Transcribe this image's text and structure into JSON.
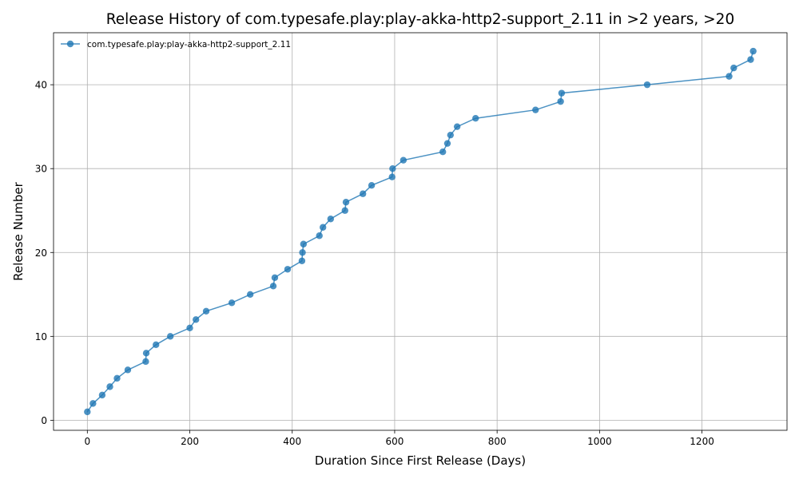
{
  "chart_data": {
    "type": "line",
    "title": "Release History of com.typesafe.play:play-akka-http2-support_2.11 in >2 years, >20",
    "xlabel": "Duration Since First Release (Days)",
    "ylabel": "Release Number",
    "xlim": [
      -66,
      1366
    ],
    "ylim": [
      -1.2,
      46.2
    ],
    "xticks": [
      0,
      200,
      400,
      600,
      800,
      1000,
      1200
    ],
    "yticks": [
      0,
      10,
      20,
      30,
      40
    ],
    "grid": true,
    "legend_position": "upper left",
    "colors": {
      "series": "#1f77b4"
    },
    "series": [
      {
        "name": "com.typesafe.play:play-akka-http2-support_2.11",
        "marker": "o",
        "x": [
          0,
          11,
          29,
          44,
          58,
          79,
          114,
          115,
          134,
          162,
          200,
          212,
          232,
          282,
          318,
          363,
          366,
          391,
          419,
          420,
          422,
          453,
          460,
          475,
          503,
          505,
          538,
          555,
          595,
          596,
          617,
          694,
          703,
          709,
          722,
          758,
          875,
          924,
          926,
          1093,
          1253,
          1262,
          1295,
          1300
        ],
        "y": [
          1,
          2,
          3,
          4,
          5,
          6,
          7,
          8,
          9,
          10,
          11,
          12,
          13,
          14,
          15,
          16,
          17,
          18,
          19,
          20,
          21,
          22,
          23,
          24,
          25,
          26,
          27,
          28,
          29,
          30,
          31,
          32,
          33,
          34,
          35,
          36,
          37,
          38,
          39,
          40,
          41,
          42,
          43,
          44
        ]
      }
    ]
  }
}
